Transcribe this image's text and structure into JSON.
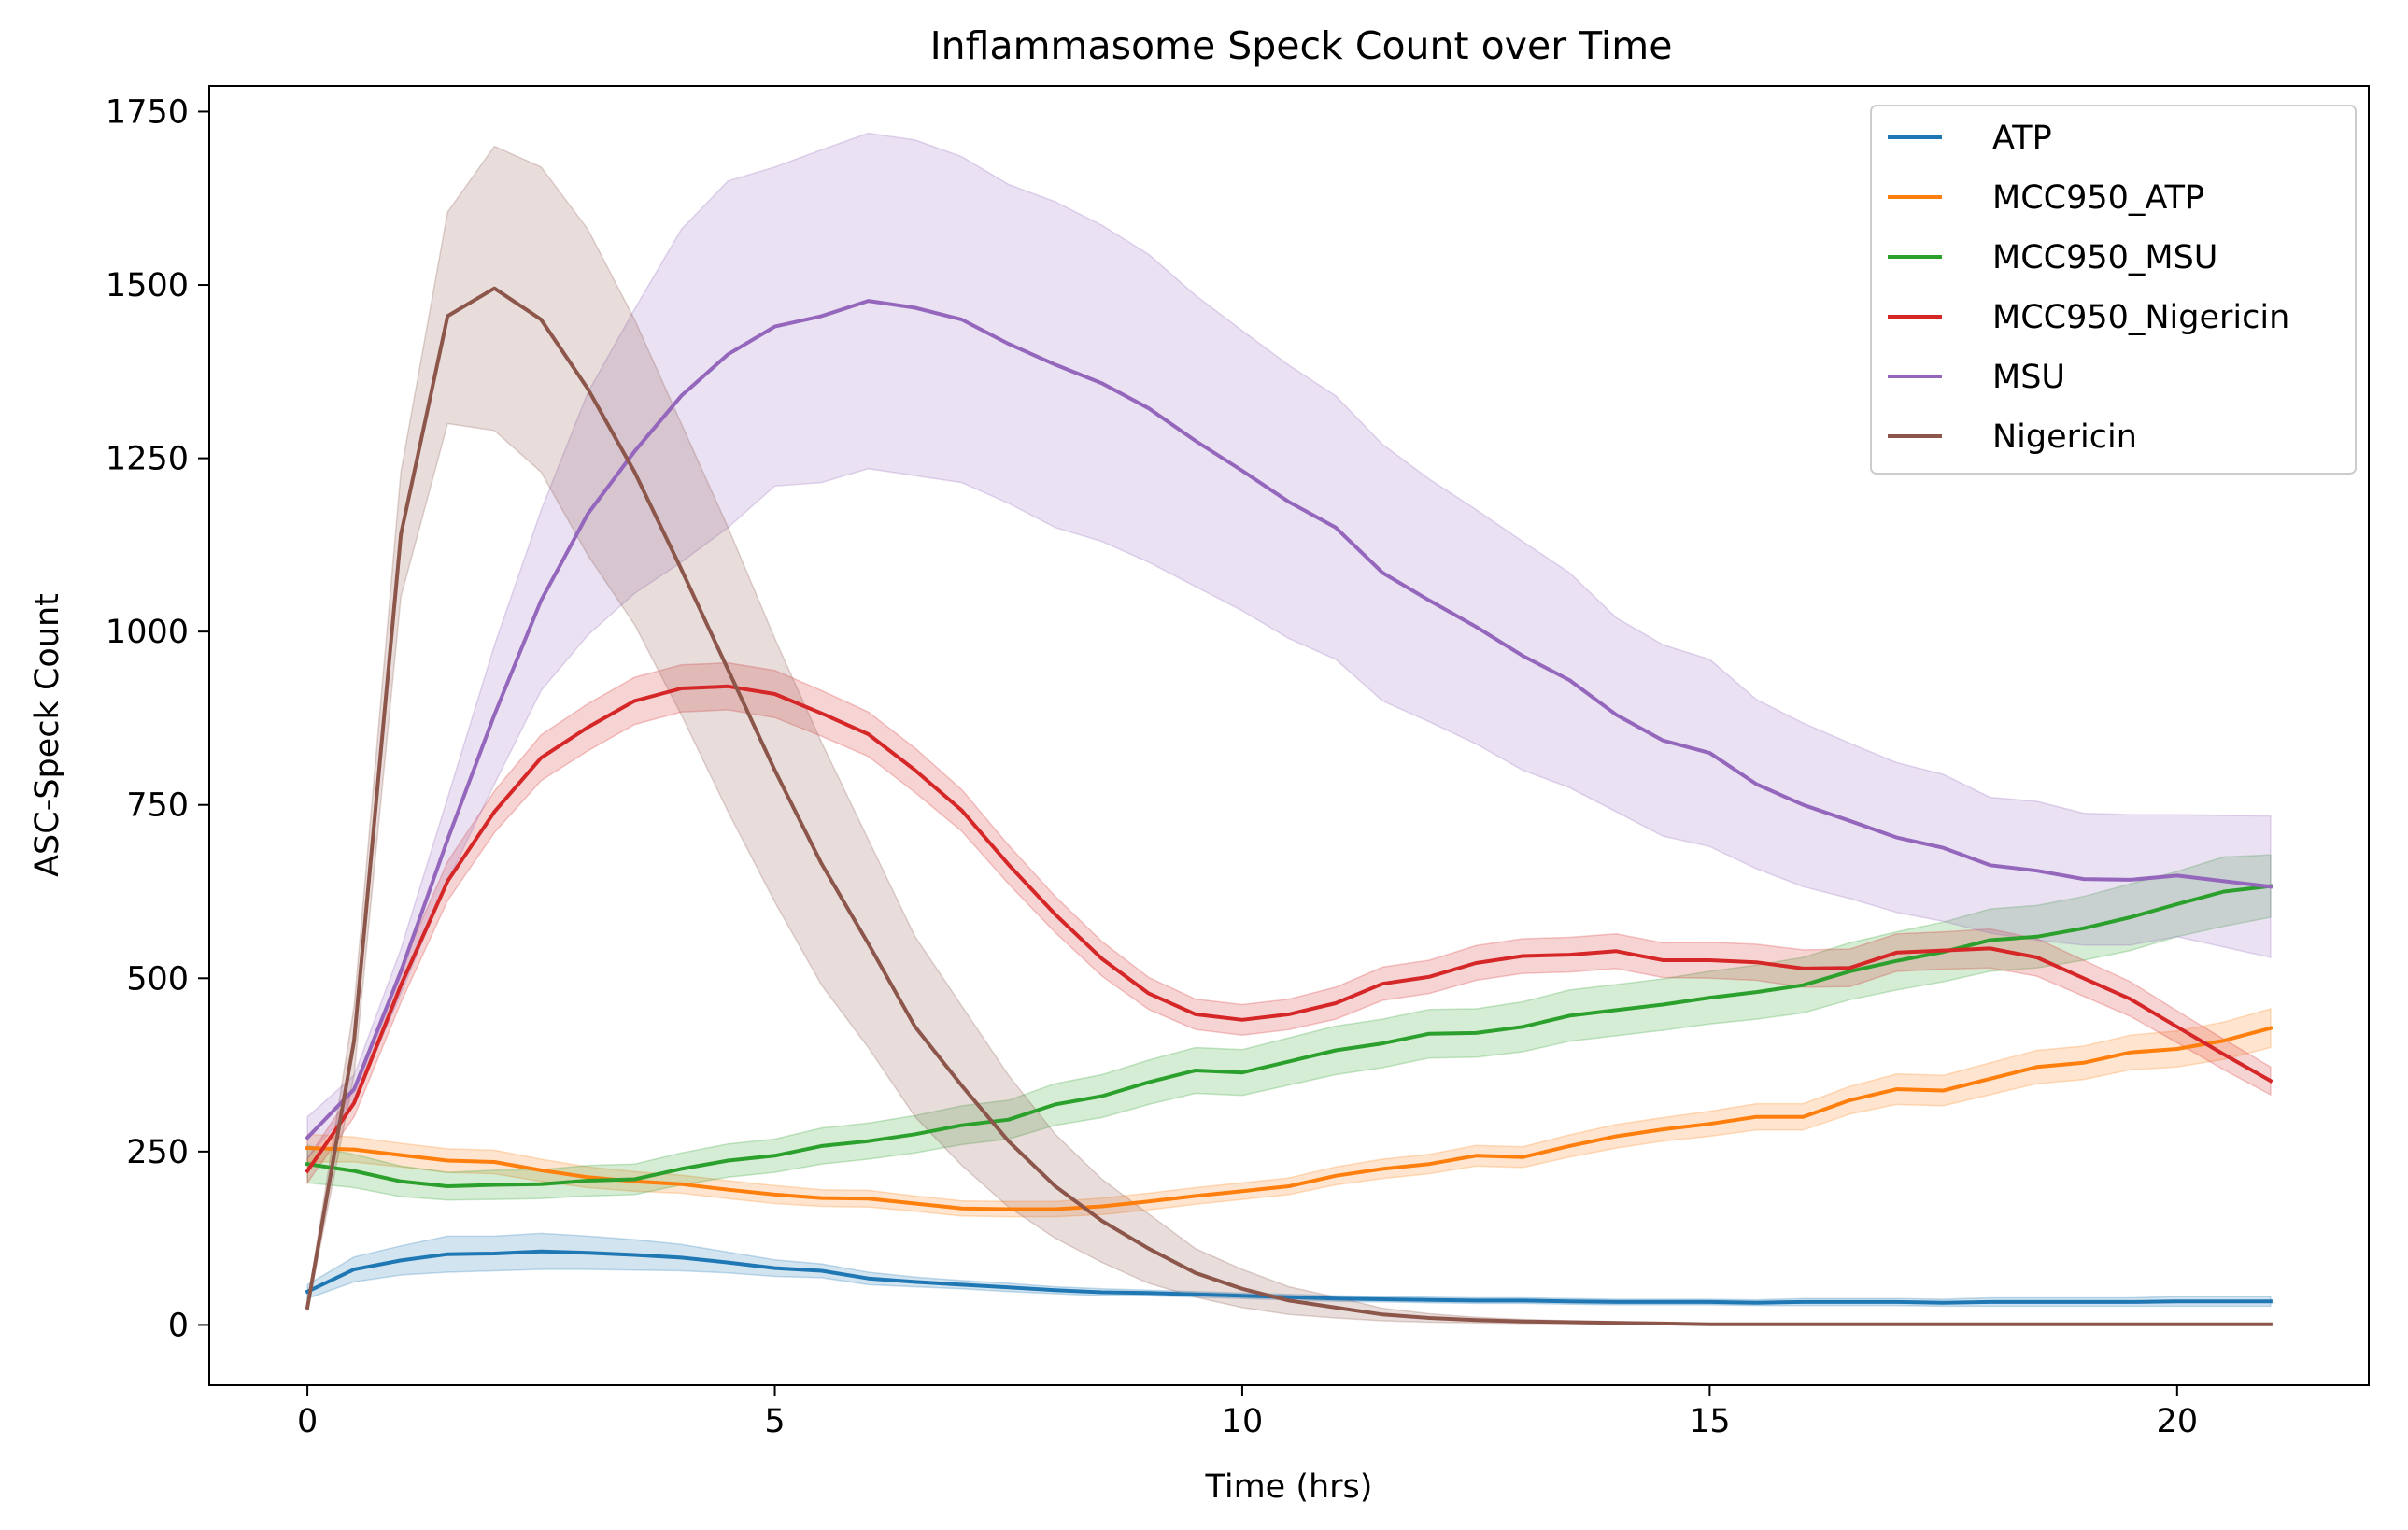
{
  "chart_data": {
    "type": "line",
    "title": "Inflammasome Speck Count over Time",
    "xlabel": "Time (hrs)",
    "ylabel": "ASC-Speck Count",
    "xlim": [
      -1.05,
      22.05
    ],
    "ylim": [
      -87,
      1787
    ],
    "xticks": [
      0,
      5,
      10,
      15,
      20
    ],
    "yticks": [
      0,
      250,
      500,
      750,
      1000,
      1250,
      1500,
      1750
    ],
    "grid": false,
    "legend_position": "upper right",
    "confidence_bands": true,
    "series": [
      {
        "name": "ATP",
        "color": "#1f77b4",
        "x": [
          0,
          0.5,
          1,
          1.5,
          2,
          2.5,
          3,
          3.5,
          4,
          4.5,
          5,
          5.5,
          6,
          6.5,
          7,
          7.5,
          8,
          8.5,
          9,
          9.5,
          10,
          10.5,
          11,
          11.5,
          12,
          12.5,
          13,
          13.5,
          14,
          14.5,
          15,
          15.5,
          16,
          16.5,
          17,
          17.5,
          18,
          18.5,
          19,
          19.5,
          20,
          20.5,
          21
        ],
        "y": [
          48,
          80,
          93,
          102,
          103,
          106,
          104,
          101,
          97,
          90,
          82,
          78,
          67,
          62,
          58,
          54,
          50,
          47,
          46,
          44,
          42,
          40,
          38,
          37,
          36,
          35,
          35,
          34,
          33,
          33,
          33,
          32,
          33,
          33,
          33,
          32,
          33,
          33,
          33,
          33,
          34,
          34,
          34
        ],
        "lower": [
          38,
          62,
          72,
          76,
          78,
          80,
          80,
          79,
          78,
          75,
          70,
          68,
          58,
          55,
          52,
          48,
          45,
          42,
          42,
          40,
          38,
          36,
          34,
          33,
          32,
          31,
          31,
          30,
          29,
          29,
          29,
          28,
          28,
          28,
          28,
          27,
          27,
          27,
          27,
          27,
          27,
          27,
          27
        ],
        "upper": [
          58,
          98,
          114,
          128,
          128,
          132,
          128,
          123,
          116,
          105,
          94,
          88,
          76,
          69,
          64,
          60,
          55,
          52,
          50,
          48,
          46,
          44,
          42,
          41,
          40,
          39,
          39,
          38,
          37,
          37,
          37,
          36,
          38,
          38,
          38,
          37,
          39,
          39,
          39,
          39,
          41,
          41,
          41
        ]
      },
      {
        "name": "MCC950_ATP",
        "color": "#ff7f0e",
        "x": [
          0,
          0.5,
          1,
          1.5,
          2,
          2.5,
          3,
          3.5,
          4,
          4.5,
          5,
          5.5,
          6,
          6.5,
          7,
          7.5,
          8,
          8.5,
          9,
          9.5,
          10,
          10.5,
          11,
          11.5,
          12,
          12.5,
          13,
          13.5,
          14,
          14.5,
          15,
          15.5,
          16,
          16.5,
          17,
          17.5,
          18,
          18.5,
          19,
          19.5,
          20,
          20.5,
          21
        ],
        "y": [
          255,
          253,
          245,
          237,
          235,
          223,
          213,
          207,
          203,
          195,
          188,
          183,
          182,
          175,
          168,
          167,
          167,
          171,
          178,
          186,
          193,
          200,
          215,
          225,
          232,
          244,
          242,
          258,
          272,
          282,
          290,
          300,
          300,
          324,
          340,
          338,
          355,
          372,
          378,
          393,
          398,
          410,
          428
        ],
        "lower": [
          235,
          235,
          228,
          220,
          218,
          207,
          198,
          193,
          190,
          182,
          175,
          171,
          170,
          164,
          157,
          156,
          156,
          159,
          166,
          174,
          181,
          188,
          202,
          211,
          218,
          229,
          227,
          242,
          255,
          265,
          272,
          281,
          281,
          304,
          318,
          316,
          332,
          348,
          354,
          368,
          372,
          383,
          400
        ],
        "upper": [
          275,
          271,
          262,
          254,
          252,
          239,
          228,
          221,
          216,
          208,
          201,
          195,
          194,
          186,
          179,
          178,
          178,
          183,
          190,
          198,
          205,
          212,
          228,
          239,
          246,
          259,
          257,
          274,
          289,
          299,
          308,
          319,
          319,
          344,
          362,
          360,
          378,
          396,
          402,
          418,
          424,
          437,
          456
        ]
      },
      {
        "name": "MCC950_MSU",
        "color": "#2ca02c",
        "x": [
          0,
          0.5,
          1,
          1.5,
          2,
          2.5,
          3,
          3.5,
          4,
          4.5,
          5,
          5.5,
          6,
          6.5,
          7,
          7.5,
          8,
          8.5,
          9,
          9.5,
          10,
          10.5,
          11,
          11.5,
          12,
          12.5,
          13,
          13.5,
          14,
          14.5,
          15,
          15.5,
          16,
          16.5,
          17,
          17.5,
          18,
          18.5,
          19,
          19.5,
          20,
          20.5,
          21
        ],
        "y": [
          232,
          222,
          207,
          200,
          202,
          203,
          208,
          210,
          225,
          237,
          244,
          258,
          265,
          275,
          288,
          296,
          318,
          330,
          350,
          367,
          364,
          380,
          396,
          406,
          420,
          421,
          430,
          446,
          454,
          462,
          472,
          480,
          490,
          510,
          525,
          538,
          555,
          560,
          572,
          588,
          607,
          625,
          633
        ],
        "lower": [
          205,
          198,
          185,
          180,
          181,
          182,
          186,
          188,
          202,
          213,
          220,
          232,
          239,
          248,
          260,
          268,
          288,
          299,
          318,
          334,
          331,
          346,
          361,
          371,
          385,
          386,
          394,
          409,
          417,
          425,
          434,
          441,
          450,
          469,
          483,
          495,
          510,
          515,
          526,
          540,
          560,
          575,
          588
        ],
        "upper": [
          259,
          246,
          229,
          220,
          223,
          224,
          230,
          232,
          248,
          261,
          268,
          284,
          291,
          302,
          316,
          324,
          348,
          361,
          382,
          400,
          397,
          414,
          431,
          441,
          455,
          456,
          466,
          483,
          491,
          499,
          510,
          519,
          530,
          551,
          567,
          581,
          600,
          605,
          618,
          636,
          654,
          675,
          678
        ]
      },
      {
        "name": "MCC950_Nigericin",
        "color": "#d62728",
        "x": [
          0,
          0.5,
          1,
          1.5,
          2,
          2.5,
          3,
          3.5,
          4,
          4.5,
          5,
          5.5,
          6,
          6.5,
          7,
          7.5,
          8,
          8.5,
          9,
          9.5,
          10,
          10.5,
          11,
          11.5,
          12,
          12.5,
          13,
          13.5,
          14,
          14.5,
          15,
          15.5,
          16,
          16.5,
          17,
          17.5,
          18,
          18.5,
          19,
          19.5,
          20,
          20.5,
          21
        ],
        "y": [
          222,
          320,
          490,
          640,
          740,
          818,
          862,
          900,
          918,
          921,
          910,
          882,
          852,
          800,
          742,
          664,
          592,
          528,
          478,
          448,
          440,
          448,
          464,
          492,
          502,
          522,
          532,
          534,
          539,
          526,
          526,
          523,
          514,
          515,
          537,
          540,
          543,
          530,
          500,
          470,
          430,
          390,
          352
        ],
        "lower": [
          205,
          300,
          465,
          612,
          710,
          785,
          828,
          866,
          884,
          887,
          876,
          849,
          820,
          768,
          712,
          636,
          566,
          503,
          455,
          426,
          418,
          426,
          441,
          468,
          478,
          497,
          507,
          509,
          514,
          501,
          500,
          497,
          487,
          488,
          510,
          513,
          515,
          503,
          474,
          445,
          407,
          368,
          332
        ],
        "upper": [
          240,
          340,
          515,
          668,
          770,
          851,
          896,
          934,
          952,
          955,
          944,
          915,
          884,
          832,
          772,
          692,
          618,
          553,
          501,
          470,
          462,
          470,
          487,
          516,
          526,
          547,
          557,
          559,
          564,
          551,
          552,
          549,
          541,
          542,
          564,
          567,
          571,
          557,
          526,
          495,
          453,
          412,
          372
        ]
      },
      {
        "name": "MSU",
        "color": "#9467bd",
        "x": [
          0,
          0.5,
          1,
          1.5,
          2,
          2.5,
          3,
          3.5,
          4,
          4.5,
          5,
          5.5,
          6,
          6.5,
          7,
          7.5,
          8,
          8.5,
          9,
          9.5,
          10,
          10.5,
          11,
          11.5,
          12,
          12.5,
          13,
          13.5,
          14,
          14.5,
          15,
          15.5,
          16,
          16.5,
          17,
          17.5,
          18,
          18.5,
          19,
          19.5,
          20,
          20.5,
          21
        ],
        "y": [
          270,
          340,
          510,
          700,
          880,
          1045,
          1170,
          1260,
          1340,
          1400,
          1440,
          1455,
          1477,
          1467,
          1450,
          1415,
          1385,
          1358,
          1322,
          1275,
          1232,
          1187,
          1150,
          1085,
          1045,
          1007,
          965,
          930,
          880,
          843,
          825,
          780,
          750,
          727,
          703,
          688,
          663,
          655,
          643,
          642,
          648,
          640,
          632
        ],
        "lower": [
          240,
          320,
          478,
          640,
          780,
          915,
          995,
          1055,
          1100,
          1150,
          1210,
          1215,
          1235,
          1225,
          1215,
          1185,
          1150,
          1130,
          1100,
          1065,
          1030,
          990,
          960,
          900,
          870,
          838,
          800,
          775,
          740,
          705,
          690,
          658,
          632,
          615,
          595,
          582,
          565,
          555,
          548,
          548,
          560,
          545,
          530
        ],
        "upper": [
          300,
          360,
          542,
          760,
          980,
          1175,
          1345,
          1465,
          1580,
          1650,
          1670,
          1695,
          1719,
          1709,
          1685,
          1645,
          1620,
          1586,
          1544,
          1485,
          1434,
          1384,
          1340,
          1270,
          1220,
          1176,
          1130,
          1085,
          1020,
          981,
          960,
          902,
          868,
          839,
          811,
          794,
          761,
          755,
          738,
          736,
          736,
          735,
          734
        ]
      },
      {
        "name": "Nigericin",
        "color": "#8c564b",
        "x": [
          0,
          0.5,
          1,
          1.5,
          2,
          2.5,
          3,
          3.5,
          4,
          4.5,
          5,
          5.5,
          6,
          6.5,
          7,
          7.5,
          8,
          8.5,
          9,
          9.5,
          10,
          10.5,
          11,
          11.5,
          12,
          12.5,
          13,
          13.5,
          14,
          14.5,
          15,
          15.5,
          16,
          16.5,
          17,
          17.5,
          18,
          18.5,
          19,
          19.5,
          20,
          20.5,
          21
        ],
        "y": [
          25,
          410,
          1140,
          1455,
          1495,
          1450,
          1350,
          1230,
          1090,
          945,
          800,
          665,
          550,
          430,
          345,
          265,
          200,
          150,
          110,
          75,
          52,
          35,
          25,
          15,
          10,
          7,
          5,
          4,
          3,
          2,
          1,
          1,
          1,
          1,
          1,
          1,
          1,
          1,
          1,
          1,
          1,
          1,
          1
        ],
        "lower": [
          20,
          360,
          1050,
          1300,
          1290,
          1230,
          1110,
          1010,
          880,
          740,
          610,
          490,
          400,
          300,
          230,
          170,
          125,
          90,
          60,
          40,
          25,
          15,
          10,
          6,
          4,
          3,
          2,
          2,
          1,
          1,
          0,
          0,
          0,
          0,
          0,
          0,
          0,
          0,
          0,
          0,
          0,
          0,
          0
        ],
        "upper": [
          30,
          460,
          1230,
          1605,
          1700,
          1670,
          1580,
          1450,
          1300,
          1150,
          990,
          840,
          700,
          560,
          460,
          360,
          275,
          210,
          160,
          110,
          80,
          55,
          40,
          24,
          16,
          11,
          8,
          6,
          5,
          3,
          2,
          2,
          2,
          2,
          2,
          2,
          2,
          2,
          2,
          2,
          2,
          2,
          2
        ]
      }
    ]
  }
}
